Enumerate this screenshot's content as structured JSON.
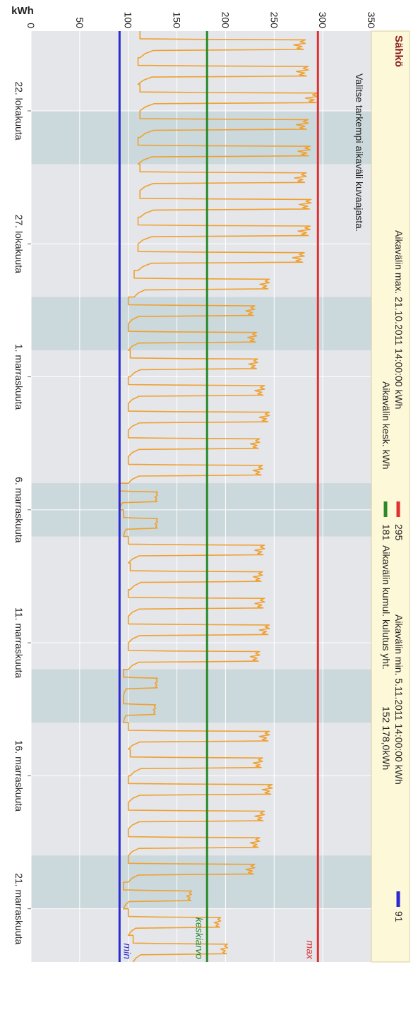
{
  "chart_data": {
    "type": "line",
    "title": "Sähkö",
    "ylabel": "kWh",
    "xlabel": "",
    "ylim": [
      0,
      350
    ],
    "yticks": [
      0,
      50,
      100,
      150,
      200,
      250,
      300,
      350
    ],
    "x_range": [
      "2011-10-19",
      "2011-11-23"
    ],
    "x_ticks": [
      {
        "date": "2011-10-22",
        "label": "22. lokakuuta"
      },
      {
        "date": "2011-10-27",
        "label": "27. lokakuuta"
      },
      {
        "date": "2011-11-01",
        "label": "1. marraskuuta"
      },
      {
        "date": "2011-11-06",
        "label": "6. marraskuuta"
      },
      {
        "date": "2011-11-11",
        "label": "11. marraskuuta"
      },
      {
        "date": "2011-11-16",
        "label": "16. marraskuuta"
      },
      {
        "date": "2011-11-21",
        "label": "21. marraskuuta"
      }
    ],
    "weekend_shading": [
      [
        "2011-10-22",
        "2011-10-24"
      ],
      [
        "2011-10-29",
        "2011-10-31"
      ],
      [
        "2011-11-05",
        "2011-11-07"
      ],
      [
        "2011-11-12",
        "2011-11-14"
      ],
      [
        "2011-11-19",
        "2011-11-21"
      ]
    ],
    "reference_lines": [
      {
        "name": "max",
        "value": 295,
        "color": "#e03030"
      },
      {
        "name": "keskiarvo",
        "value": 181,
        "color": "#2a8a2a"
      },
      {
        "name": "min",
        "value": 91,
        "color": "#2a2ad0"
      }
    ],
    "daily_ranges": [
      {
        "date": "2011-10-19",
        "low": 112,
        "high": 282
      },
      {
        "date": "2011-10-20",
        "low": 110,
        "high": 285
      },
      {
        "date": "2011-10-21",
        "low": 112,
        "high": 295
      },
      {
        "date": "2011-10-22",
        "low": 112,
        "high": 285
      },
      {
        "date": "2011-10-23",
        "low": 110,
        "high": 287
      },
      {
        "date": "2011-10-24",
        "low": 112,
        "high": 283
      },
      {
        "date": "2011-10-25",
        "low": 112,
        "high": 288
      },
      {
        "date": "2011-10-26",
        "low": 110,
        "high": 287
      },
      {
        "date": "2011-10-27",
        "low": 110,
        "high": 281
      },
      {
        "date": "2011-10-28",
        "low": 106,
        "high": 245
      },
      {
        "date": "2011-10-29",
        "low": 100,
        "high": 230
      },
      {
        "date": "2011-10-30",
        "low": 100,
        "high": 232
      },
      {
        "date": "2011-10-31",
        "low": 102,
        "high": 233
      },
      {
        "date": "2011-11-01",
        "low": 100,
        "high": 240
      },
      {
        "date": "2011-11-02",
        "low": 100,
        "high": 245
      },
      {
        "date": "2011-11-03",
        "low": 100,
        "high": 235
      },
      {
        "date": "2011-11-04",
        "low": 100,
        "high": 238
      },
      {
        "date": "2011-11-05",
        "low": 91,
        "high": 130
      },
      {
        "date": "2011-11-06",
        "low": 95,
        "high": 130
      },
      {
        "date": "2011-11-07",
        "low": 100,
        "high": 240
      },
      {
        "date": "2011-11-08",
        "low": 102,
        "high": 238
      },
      {
        "date": "2011-11-09",
        "low": 100,
        "high": 240
      },
      {
        "date": "2011-11-10",
        "low": 100,
        "high": 245
      },
      {
        "date": "2011-11-11",
        "low": 100,
        "high": 235
      },
      {
        "date": "2011-11-12",
        "low": 95,
        "high": 130
      },
      {
        "date": "2011-11-13",
        "low": 95,
        "high": 128
      },
      {
        "date": "2011-11-14",
        "low": 100,
        "high": 245
      },
      {
        "date": "2011-11-15",
        "low": 102,
        "high": 238
      },
      {
        "date": "2011-11-16",
        "low": 100,
        "high": 248
      },
      {
        "date": "2011-11-17",
        "low": 100,
        "high": 240
      },
      {
        "date": "2011-11-18",
        "low": 100,
        "high": 235
      },
      {
        "date": "2011-11-19",
        "low": 100,
        "high": 230
      },
      {
        "date": "2011-11-20",
        "low": 95,
        "high": 165
      },
      {
        "date": "2011-11-21",
        "low": 100,
        "high": 195
      },
      {
        "date": "2011-11-22",
        "low": 105,
        "high": 202
      }
    ]
  },
  "header": {
    "title": "Sähkö",
    "max_label": "Aikavälin max. 21.10.2011 14:00:00 kWh",
    "max_value": "295",
    "min_label": "Aikavälin min. 5.11.2011 14:00:00 kWh",
    "min_value": "91",
    "avg_label": "Aikavälin kesk. kWh",
    "avg_value": "181",
    "cumul_label": "Aikavälin kumul. kulutus yht.",
    "cumul_value": "152 178,0kWh",
    "hint": "Valitse tarkempi aikaväli kuvaajasta."
  },
  "line_labels": {
    "max": "max",
    "avg": "keskiarvo",
    "min": "min"
  },
  "colors": {
    "series": "#f0a030",
    "max": "#e03030",
    "avg": "#2a8a2a",
    "min": "#2a2ad0",
    "plot_bg": "#e4e6ea",
    "weekend": "#cbd8dc",
    "header_bg": "#fdf8d8"
  }
}
